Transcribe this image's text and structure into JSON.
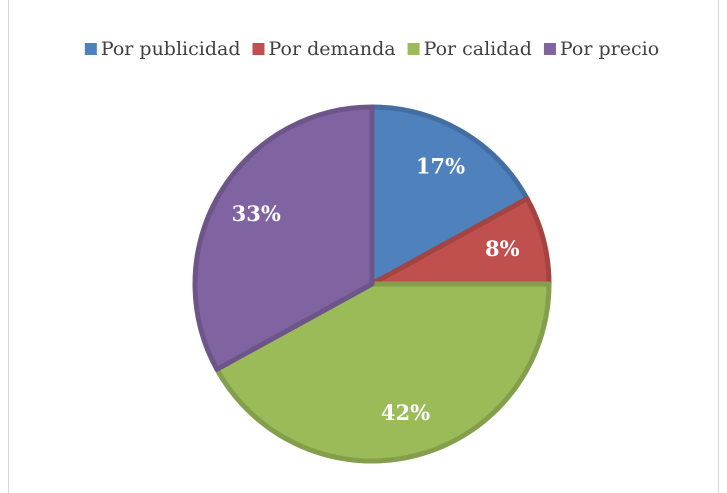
{
  "chart_data": {
    "type": "pie",
    "categories": [
      "Por publicidad",
      "Por demanda",
      "Por calidad",
      "Por precio"
    ],
    "values": [
      17,
      8,
      42,
      33
    ],
    "value_labels": [
      "17%",
      "8%",
      "42%",
      "33%"
    ],
    "colors": [
      "#4f81bd",
      "#c0504d",
      "#9bbb59",
      "#8064a2"
    ],
    "legend": "top"
  }
}
